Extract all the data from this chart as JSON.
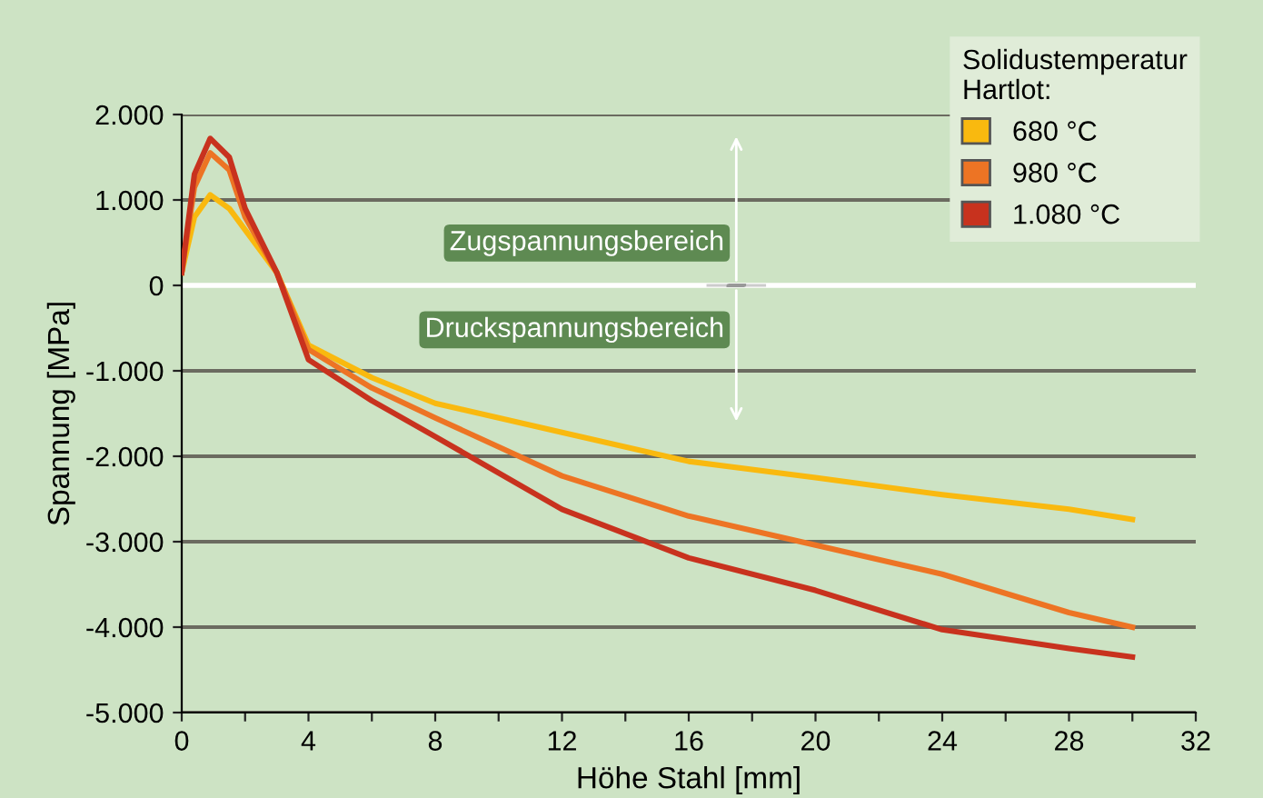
{
  "chart_data": {
    "type": "line",
    "xlabel": "Höhe Stahl [mm]",
    "ylabel": "Spannung [MPa]",
    "legend_title": "Solidustemperatur\nHartlot:",
    "legend": "top right",
    "grid": "y",
    "line_style": "solid",
    "xlim": [
      0,
      32
    ],
    "xticks": [
      0,
      {
        "value": 2,
        "label": null
      },
      4,
      {
        "value": 6,
        "label": null
      },
      8,
      {
        "value": 10,
        "label": null
      },
      12,
      {
        "value": 14,
        "label": null
      },
      16,
      {
        "value": 18,
        "label": null
      },
      20,
      {
        "value": 22,
        "label": null
      },
      24,
      {
        "value": 26,
        "label": null
      },
      28,
      {
        "value": 30,
        "label": null
      },
      32
    ],
    "ylim": [
      -5000,
      2000
    ],
    "yticks": [
      {
        "value": -5000,
        "label": "-5.000"
      },
      {
        "value": -4000,
        "label": "-4.000"
      },
      {
        "value": -3000,
        "label": "-3.000"
      },
      {
        "value": -2000,
        "label": "-2.000"
      },
      {
        "value": -1000,
        "label": "-1.000"
      },
      0,
      {
        "value": 1000,
        "label": "1.000"
      },
      {
        "value": 2000,
        "label": "2.000"
      }
    ],
    "x": [
      0,
      0.4,
      0.9,
      1.5,
      2,
      3,
      4,
      6,
      8,
      12,
      16,
      20,
      24,
      28,
      30
    ],
    "series": [
      {
        "name": "680 °C",
        "color": "#f9b90f",
        "values": [
          150,
          800,
          1060,
          900,
          650,
          150,
          -700,
          -1080,
          -1380,
          -1720,
          -2060,
          -2250,
          -2450,
          -2620,
          -2740
        ]
      },
      {
        "name": "980 °C",
        "color": "#ed7424",
        "values": [
          150,
          1150,
          1550,
          1350,
          800,
          150,
          -750,
          -1200,
          -1550,
          -2230,
          -2700,
          -3040,
          -3380,
          -3830,
          -4000
        ]
      },
      {
        "name": "1.080 °C",
        "color": "#c8321e",
        "values": [
          150,
          1300,
          1720,
          1500,
          900,
          150,
          -870,
          -1350,
          -1770,
          -2620,
          -3190,
          -3570,
          -4030,
          -4250,
          -4350
        ]
      }
    ],
    "ref_lines": [
      {
        "axis": "y",
        "value": 0,
        "color": "#ffffff"
      }
    ],
    "annotations": [
      "Zugspannungsbereich",
      "Druckspannungsbereich"
    ]
  }
}
